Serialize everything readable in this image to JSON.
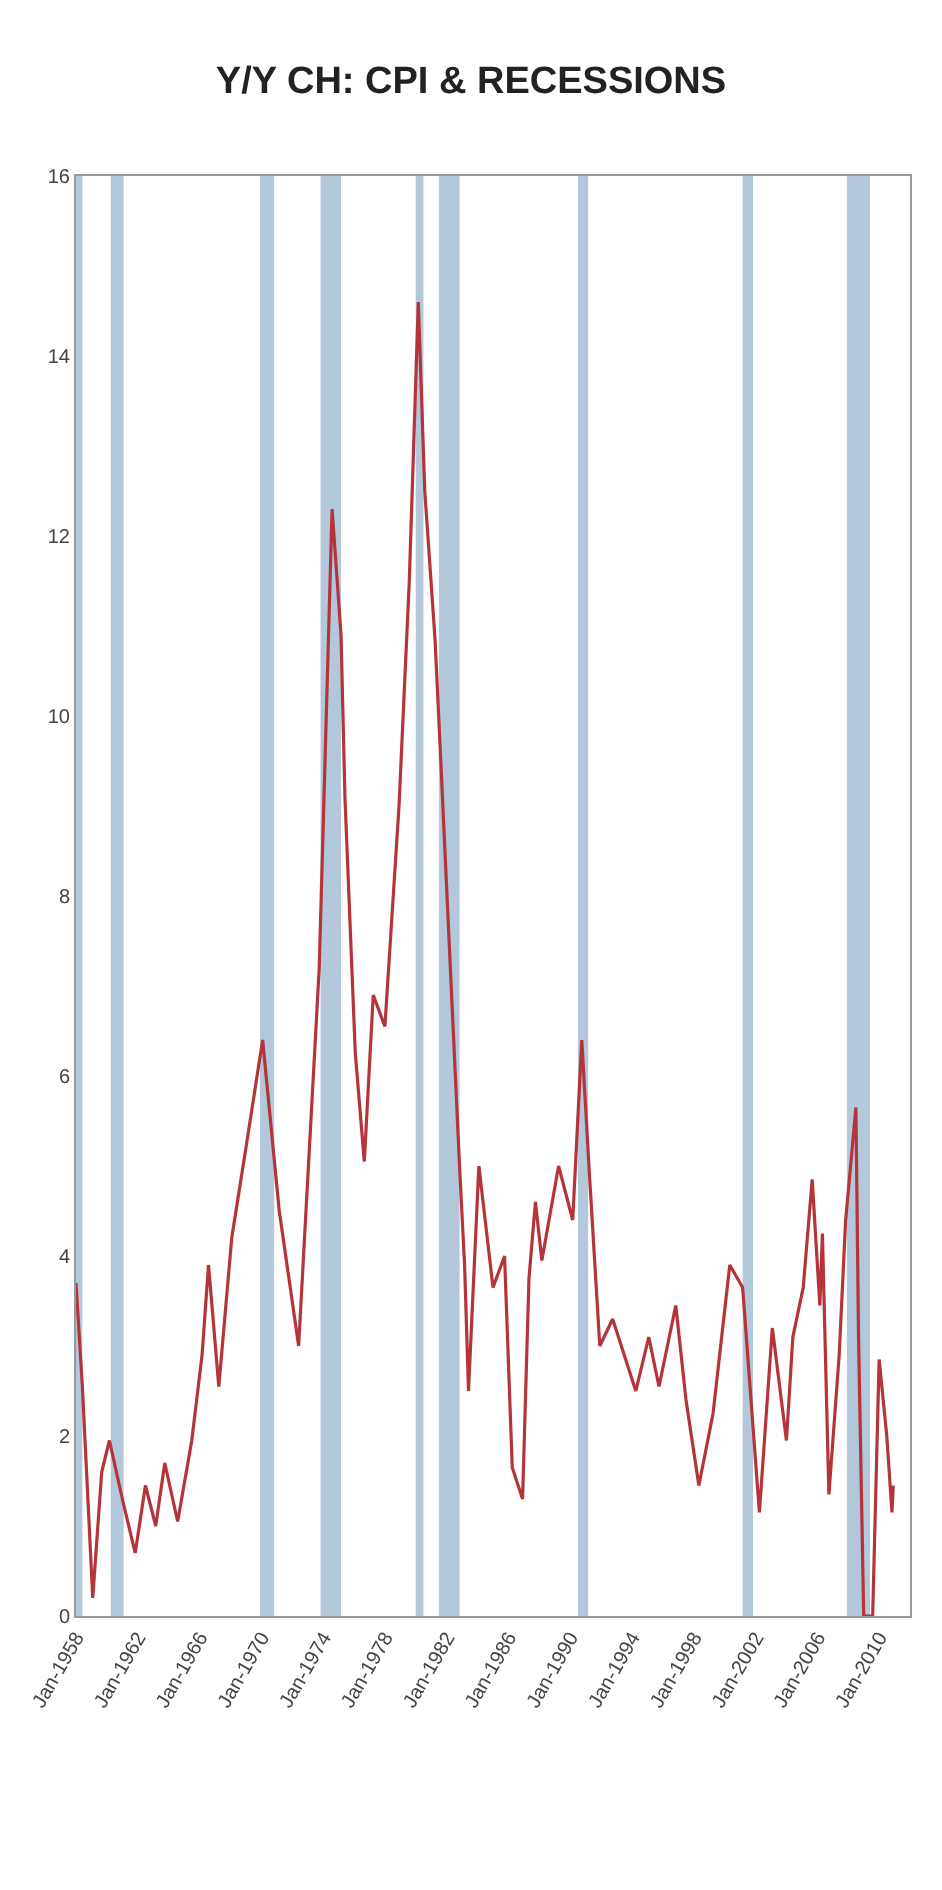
{
  "chart_data": {
    "type": "line",
    "title": "Y/Y CH: CPI & RECESSIONS",
    "x": [
      "1958-01",
      "1958-06",
      "1959-02",
      "1959-09",
      "1960-03",
      "1961-01",
      "1961-11",
      "1962-07",
      "1963-03",
      "1963-10",
      "1964-08",
      "1965-07",
      "1966-03",
      "1966-08",
      "1967-04",
      "1968-02",
      "1969-01",
      "1970-02",
      "1971-03",
      "1972-06",
      "1973-10",
      "1974-08",
      "1975-03",
      "1975-06",
      "1976-02",
      "1976-09",
      "1977-04",
      "1978-01",
      "1978-12",
      "1979-08",
      "1980-03",
      "1980-08",
      "1981-04",
      "1981-07",
      "1981-12",
      "1982-11",
      "1983-03",
      "1983-06",
      "1984-02",
      "1985-01",
      "1985-10",
      "1986-04",
      "1986-12",
      "1987-05",
      "1987-10",
      "1988-03",
      "1989-04",
      "1990-03",
      "1990-10",
      "1991-04",
      "1991-12",
      "1992-10",
      "1994-04",
      "1995-02",
      "1995-10",
      "1996-11",
      "1997-07",
      "1998-05",
      "1999-04",
      "2000-05",
      "2001-03",
      "2002-04",
      "2003-02",
      "2004-01",
      "2004-06",
      "2005-02",
      "2005-09",
      "2006-03",
      "2006-05",
      "2006-10",
      "2007-06",
      "2007-11",
      "2008-07",
      "2008-09",
      "2009-01",
      "2009-08",
      "2010-01",
      "2010-07",
      "2010-11",
      "2010-12"
    ],
    "series": [
      {
        "color": "#b5343a",
        "values": [
          3.7,
          2.55,
          0.2,
          1.6,
          1.95,
          1.3,
          0.7,
          1.45,
          1.0,
          1.7,
          1.05,
          1.95,
          2.9,
          3.9,
          2.55,
          4.2,
          5.2,
          6.4,
          4.5,
          3.0,
          7.2,
          12.3,
          10.9,
          9.1,
          6.25,
          5.05,
          6.9,
          6.55,
          9.0,
          11.5,
          14.6,
          12.5,
          10.85,
          9.95,
          8.4,
          5.0,
          3.9,
          2.5,
          5.0,
          3.65,
          4.0,
          1.65,
          1.3,
          3.75,
          4.6,
          3.95,
          5.0,
          4.4,
          6.4,
          4.9,
          3.0,
          3.3,
          2.5,
          3.1,
          2.55,
          3.45,
          2.4,
          1.45,
          2.25,
          3.9,
          3.65,
          1.15,
          3.2,
          1.95,
          3.1,
          3.65,
          4.85,
          3.45,
          4.25,
          1.35,
          2.9,
          4.4,
          5.65,
          3.1,
          0,
          0,
          2.85,
          2.0,
          1.15,
          1.45
        ]
      }
    ],
    "xlim": [
      "1958-01",
      "2012-01"
    ],
    "xticks": [
      {
        "value": "1958-01",
        "label": "Jan-1958"
      },
      {
        "value": "1962-01",
        "label": "Jan-1962"
      },
      {
        "value": "1966-01",
        "label": "Jan-1966"
      },
      {
        "value": "1970-01",
        "label": "Jan-1970"
      },
      {
        "value": "1974-01",
        "label": "Jan-1974"
      },
      {
        "value": "1978-01",
        "label": "Jan-1978"
      },
      {
        "value": "1982-01",
        "label": "Jan-1982"
      },
      {
        "value": "1986-01",
        "label": "Jan-1986"
      },
      {
        "value": "1990-01",
        "label": "Jan-1990"
      },
      {
        "value": "1994-01",
        "label": "Jan-1994"
      },
      {
        "value": "1998-01",
        "label": "Jan-1998"
      },
      {
        "value": "2002-01",
        "label": "Jan-2002"
      },
      {
        "value": "2006-01",
        "label": "Jan-2006"
      },
      {
        "value": "2010-01",
        "label": "Jan-2010"
      }
    ],
    "ylim": [
      0,
      16
    ],
    "yticks": [
      0,
      2,
      4,
      6,
      8,
      10,
      12,
      14,
      16
    ],
    "bands": [
      {
        "axis": "x",
        "from": "1958-01",
        "to": "1958-06",
        "color": "#b4c8dc"
      },
      {
        "axis": "x",
        "from": "1960-04",
        "to": "1961-02",
        "color": "#b4c8dc"
      },
      {
        "axis": "x",
        "from": "1969-12",
        "to": "1970-11",
        "color": "#b4c8dc"
      },
      {
        "axis": "x",
        "from": "1973-11",
        "to": "1975-03",
        "color": "#b4c8dc"
      },
      {
        "axis": "x",
        "from": "1980-01",
        "to": "1980-07",
        "color": "#b4c8dc"
      },
      {
        "axis": "x",
        "from": "1981-07",
        "to": "1982-11",
        "color": "#b4c8dc"
      },
      {
        "axis": "x",
        "from": "1990-07",
        "to": "1991-03",
        "color": "#b4c8dc"
      },
      {
        "axis": "x",
        "from": "2001-03",
        "to": "2001-11",
        "color": "#b4c8dc"
      },
      {
        "axis": "x",
        "from": "2007-12",
        "to": "2009-06",
        "color": "#b4c8dc"
      }
    ],
    "grid": false,
    "marker": "none",
    "line_style": "solid"
  }
}
